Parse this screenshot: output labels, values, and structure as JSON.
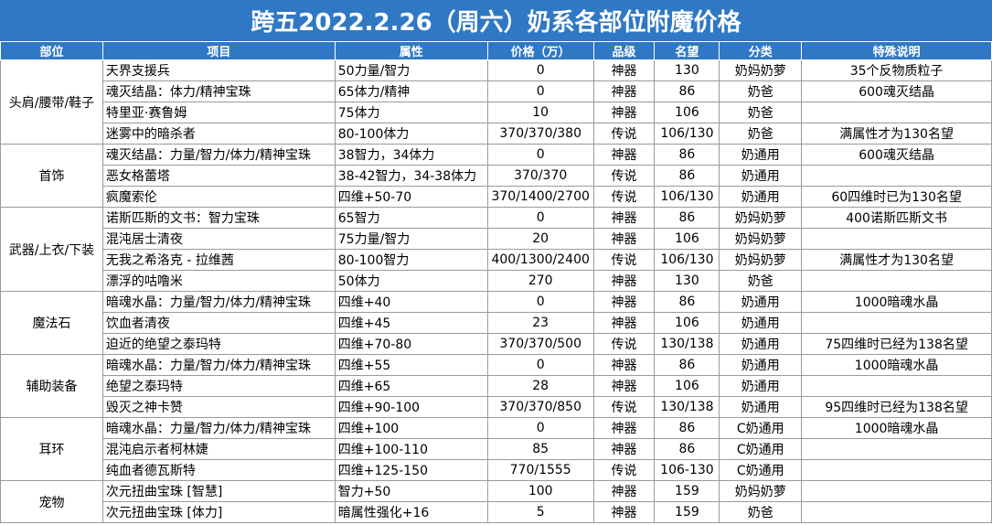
{
  "title": "跨五2022.2.26（周六）奶系各部位附魔价格",
  "headers": [
    "部位",
    "项目",
    "属性",
    "价格（万）",
    "品级",
    "名望",
    "分类",
    "特殊说明"
  ],
  "colors": {
    "header_bg": "#2f78c4",
    "tier_god": "#b02ad8",
    "tier_legend": "#e08a2a"
  },
  "groups": [
    {
      "name": "头肩/腰带/鞋子",
      "rows": [
        {
          "item": "天界支援兵",
          "attr": "50力量/智力",
          "price": "0",
          "tier": "神器",
          "fame": "130",
          "cls": "奶妈奶萝",
          "note": "35个反物质粒子"
        },
        {
          "item": "魂灭结晶：体力/精神宝珠",
          "attr": "65体力/精神",
          "price": "0",
          "tier": "神器",
          "fame": "86",
          "cls": "奶爸",
          "note": "600魂灭结晶"
        },
        {
          "item": "特里亚·赛鲁姆",
          "attr": "75体力",
          "price": "10",
          "tier": "神器",
          "fame": "106",
          "cls": "奶爸",
          "note": ""
        },
        {
          "item": "迷雾中的暗杀者",
          "attr": "80-100体力",
          "price": "370/370/380",
          "tier": "传说",
          "fame": "106/130",
          "cls": "奶爸",
          "note": "满属性才为130名望"
        }
      ]
    },
    {
      "name": "首饰",
      "rows": [
        {
          "item": "魂灭结晶：力量/智力/体力/精神宝珠",
          "attr": "38智力，34体力",
          "price": "0",
          "tier": "神器",
          "fame": "86",
          "cls": "奶通用",
          "note": "600魂灭结晶"
        },
        {
          "item": "恶女格蕾塔",
          "attr": "38-42智力，34-38体力",
          "price": "370/370",
          "tier": "传说",
          "fame": "86",
          "cls": "奶通用",
          "note": ""
        },
        {
          "item": "疯魔索伦",
          "attr": "四维+50-70",
          "price": "370/1400/2700",
          "tier": "传说",
          "fame": "106/130",
          "cls": "奶通用",
          "note": "60四维时已为130名望"
        }
      ]
    },
    {
      "name": "武器/上衣/下装",
      "rows": [
        {
          "item": "诺斯匹斯的文书：智力宝珠",
          "attr": "65智力",
          "price": "0",
          "tier": "神器",
          "fame": "86",
          "cls": "奶妈奶萝",
          "note": "400诺斯匹斯文书"
        },
        {
          "item": "混沌居士清夜",
          "attr": "75力量/智力",
          "price": "20",
          "tier": "神器",
          "fame": "106",
          "cls": "奶妈奶萝",
          "note": ""
        },
        {
          "item": "无我之希洛克 - 拉维茜",
          "attr": "80-100智力",
          "price": "400/1300/2400",
          "tier": "传说",
          "fame": "106/130",
          "cls": "奶妈奶萝",
          "note": "满属性才为130名望"
        },
        {
          "item": "漂浮的咕噜米",
          "attr": "50体力",
          "price": "270",
          "tier": "神器",
          "fame": "130",
          "cls": "奶爸",
          "note": ""
        }
      ]
    },
    {
      "name": "魔法石",
      "rows": [
        {
          "item": "暗魂水晶：力量/智力/体力/精神宝珠",
          "attr": "四维+40",
          "price": "0",
          "tier": "神器",
          "fame": "86",
          "cls": "奶通用",
          "note": "1000暗魂水晶"
        },
        {
          "item": "饮血者清夜",
          "attr": "四维+45",
          "price": "23",
          "tier": "神器",
          "fame": "106",
          "cls": "奶通用",
          "note": ""
        },
        {
          "item": "迫近的绝望之泰玛特",
          "attr": "四维+70-80",
          "price": "370/370/500",
          "tier": "传说",
          "fame": "130/138",
          "cls": "奶通用",
          "note": "75四维时已经为138名望"
        }
      ]
    },
    {
      "name": "辅助装备",
      "rows": [
        {
          "item": "暗魂水晶：力量/智力/体力/精神宝珠",
          "attr": "四维+55",
          "price": "0",
          "tier": "神器",
          "fame": "86",
          "cls": "奶通用",
          "note": "1000暗魂水晶"
        },
        {
          "item": "绝望之泰玛特",
          "attr": "四维+65",
          "price": "28",
          "tier": "神器",
          "fame": "106",
          "cls": "奶通用",
          "note": ""
        },
        {
          "item": "毁灭之神卡赞",
          "attr": "四维+90-100",
          "price": "370/370/850",
          "tier": "传说",
          "fame": "130/138",
          "cls": "奶通用",
          "note": "95四维时已经为138名望"
        }
      ]
    },
    {
      "name": "耳环",
      "rows": [
        {
          "item": "暗魂水晶：力量/智力/体力/精神宝珠",
          "attr": "四维+100",
          "price": "0",
          "tier": "神器",
          "fame": "86",
          "cls": "C奶通用",
          "note": "1000暗魂水晶"
        },
        {
          "item": "混沌启示者柯林婕",
          "attr": "四维+100-110",
          "price": "85",
          "tier": "神器",
          "fame": "86",
          "cls": "C奶通用",
          "note": ""
        },
        {
          "item": "纯血者德瓦斯特",
          "attr": "四维+125-150",
          "price": "770/1555",
          "tier": "传说",
          "fame": "106-130",
          "cls": "C奶通用",
          "note": ""
        }
      ]
    },
    {
      "name": "宠物",
      "rows": [
        {
          "item": "次元扭曲宝珠 [智慧]",
          "attr": "智力+50",
          "price": "100",
          "tier": "神器",
          "fame": "159",
          "cls": "奶妈奶萝",
          "note": ""
        },
        {
          "item": "次元扭曲宝珠 [体力]",
          "attr": "暗属性强化+16",
          "price": "5",
          "tier": "神器",
          "fame": "159",
          "cls": "奶爸",
          "note": ""
        }
      ]
    }
  ]
}
